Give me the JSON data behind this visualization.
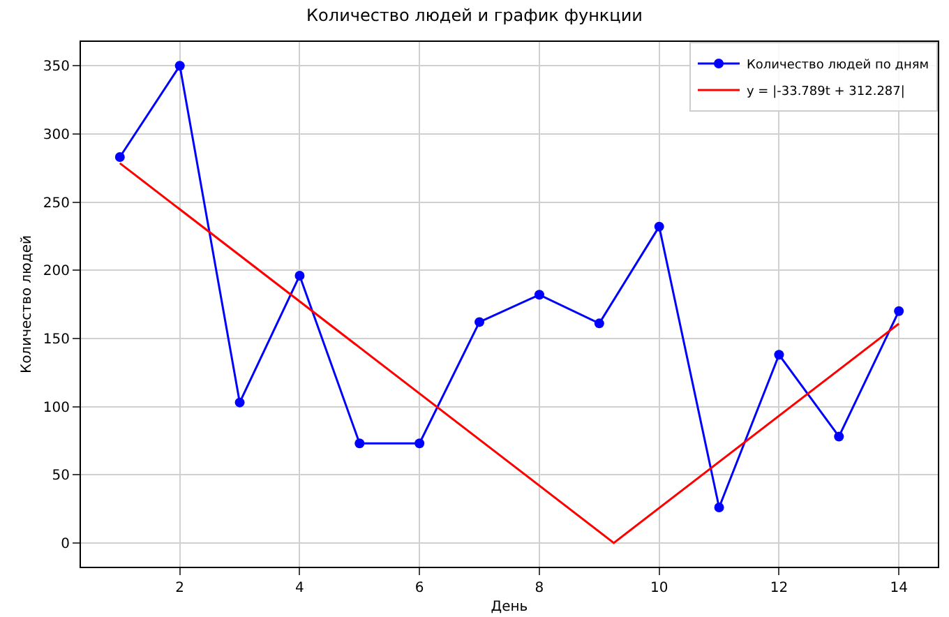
{
  "chart_data": {
    "type": "line",
    "title": "Количество людей и график функции",
    "xlabel": "День",
    "ylabel": "Количество людей",
    "x": [
      1,
      2,
      3,
      4,
      5,
      6,
      7,
      8,
      9,
      10,
      11,
      12,
      13,
      14
    ],
    "series": [
      {
        "name": "Количество людей по дням",
        "color": "#0000ff",
        "values": [
          283,
          350,
          103,
          196,
          73,
          73,
          162,
          182,
          161,
          232,
          26,
          138,
          78,
          170
        ],
        "marker": "circle"
      },
      {
        "name": "y = |-33.789t + 312.287|",
        "color": "#ff0000",
        "x": [
          1,
          9.242,
          14
        ],
        "values": [
          278.5,
          0,
          160.8
        ],
        "marker": "none"
      }
    ],
    "xlim": [
      0.35,
      14.65
    ],
    "xticks": [
      2,
      4,
      6,
      8,
      10,
      12,
      14
    ],
    "ylim": [
      -17.5,
      367.5
    ],
    "yticks": [
      0,
      50,
      100,
      150,
      200,
      250,
      300,
      350
    ],
    "grid": true,
    "legend": "top right"
  }
}
